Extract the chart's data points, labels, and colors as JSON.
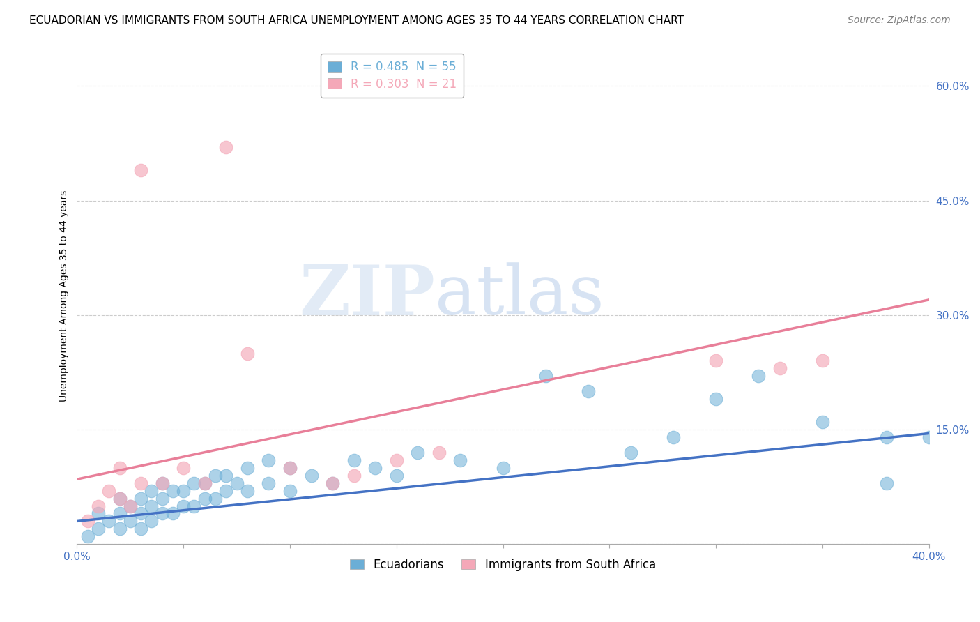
{
  "title": "ECUADORIAN VS IMMIGRANTS FROM SOUTH AFRICA UNEMPLOYMENT AMONG AGES 35 TO 44 YEARS CORRELATION CHART",
  "source": "Source: ZipAtlas.com",
  "ylabel": "Unemployment Among Ages 35 to 44 years",
  "xlim": [
    0.0,
    0.4
  ],
  "ylim": [
    0.0,
    0.65
  ],
  "yticks": [
    0.0,
    0.15,
    0.3,
    0.45,
    0.6
  ],
  "ytick_labels": [
    "",
    "15.0%",
    "30.0%",
    "45.0%",
    "60.0%"
  ],
  "xticks": [
    0.0,
    0.05,
    0.1,
    0.15,
    0.2,
    0.25,
    0.3,
    0.35,
    0.4
  ],
  "xtick_labels": [
    "0.0%",
    "",
    "",
    "",
    "",
    "",
    "",
    "",
    "40.0%"
  ],
  "blue_color": "#6baed6",
  "pink_color": "#f4a8b8",
  "blue_label": "Ecuadorians",
  "pink_label": "Immigrants from South Africa",
  "R_blue": 0.485,
  "N_blue": 55,
  "R_pink": 0.303,
  "N_pink": 21,
  "watermark_zip": "ZIP",
  "watermark_atlas": "atlas",
  "blue_scatter_x": [
    0.005,
    0.01,
    0.01,
    0.015,
    0.02,
    0.02,
    0.02,
    0.025,
    0.025,
    0.03,
    0.03,
    0.03,
    0.035,
    0.035,
    0.035,
    0.04,
    0.04,
    0.04,
    0.045,
    0.045,
    0.05,
    0.05,
    0.055,
    0.055,
    0.06,
    0.06,
    0.065,
    0.065,
    0.07,
    0.07,
    0.075,
    0.08,
    0.08,
    0.09,
    0.09,
    0.1,
    0.1,
    0.11,
    0.12,
    0.13,
    0.14,
    0.15,
    0.16,
    0.18,
    0.2,
    0.22,
    0.24,
    0.26,
    0.28,
    0.3,
    0.32,
    0.35,
    0.38,
    0.38,
    0.4
  ],
  "blue_scatter_y": [
    0.01,
    0.02,
    0.04,
    0.03,
    0.02,
    0.04,
    0.06,
    0.03,
    0.05,
    0.02,
    0.04,
    0.06,
    0.03,
    0.05,
    0.07,
    0.04,
    0.06,
    0.08,
    0.04,
    0.07,
    0.05,
    0.07,
    0.05,
    0.08,
    0.06,
    0.08,
    0.06,
    0.09,
    0.07,
    0.09,
    0.08,
    0.07,
    0.1,
    0.08,
    0.11,
    0.07,
    0.1,
    0.09,
    0.08,
    0.11,
    0.1,
    0.09,
    0.12,
    0.11,
    0.1,
    0.22,
    0.2,
    0.12,
    0.14,
    0.19,
    0.22,
    0.16,
    0.14,
    0.08,
    0.14
  ],
  "pink_scatter_x": [
    0.005,
    0.01,
    0.015,
    0.02,
    0.02,
    0.025,
    0.03,
    0.03,
    0.04,
    0.05,
    0.06,
    0.07,
    0.08,
    0.1,
    0.12,
    0.13,
    0.15,
    0.17,
    0.3,
    0.33,
    0.35
  ],
  "pink_scatter_y": [
    0.03,
    0.05,
    0.07,
    0.06,
    0.1,
    0.05,
    0.08,
    0.49,
    0.08,
    0.1,
    0.08,
    0.52,
    0.25,
    0.1,
    0.08,
    0.09,
    0.11,
    0.12,
    0.24,
    0.23,
    0.24
  ],
  "blue_trend_x": [
    0.0,
    0.4
  ],
  "blue_trend_y": [
    0.03,
    0.145
  ],
  "pink_trend_x": [
    0.0,
    0.4
  ],
  "pink_trend_y": [
    0.085,
    0.32
  ],
  "title_fontsize": 11,
  "axis_label_fontsize": 10,
  "tick_fontsize": 11,
  "legend_fontsize": 12,
  "source_fontsize": 10
}
